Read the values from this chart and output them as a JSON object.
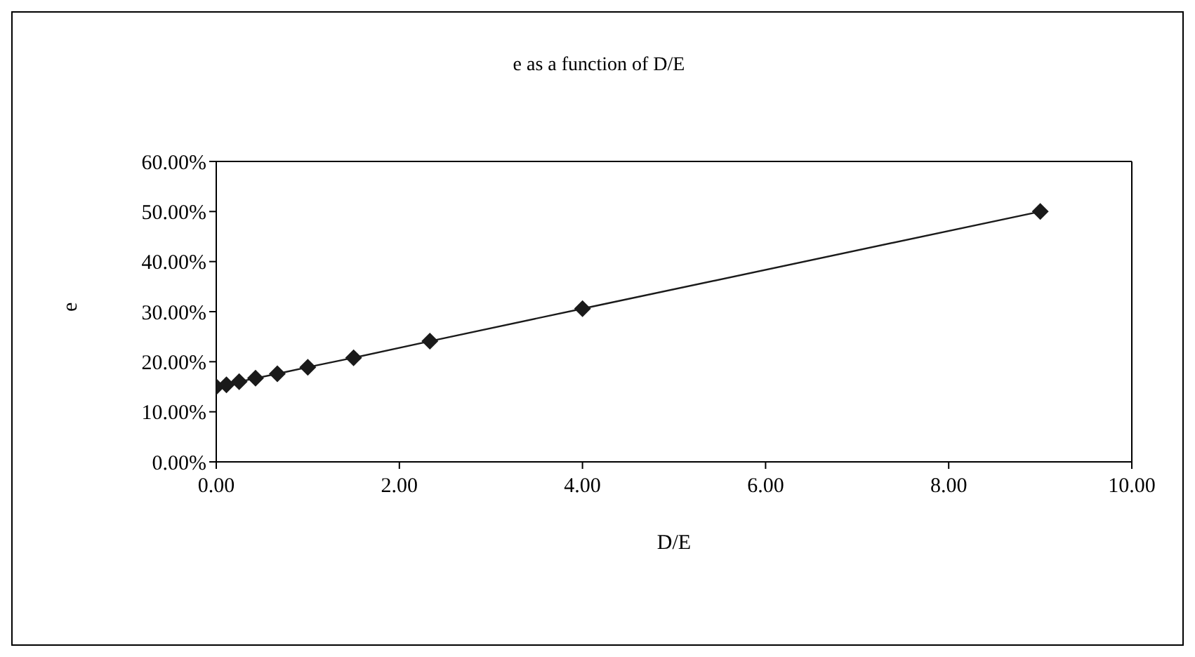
{
  "chart_data": {
    "type": "line",
    "title": "e as a function of D/E",
    "xlabel": "D/E",
    "ylabel": "e",
    "x": [
      0,
      0.111,
      0.25,
      0.429,
      0.667,
      1,
      1.5,
      2.333,
      4,
      9
    ],
    "series": [
      {
        "color": "#1a1a1a",
        "values": [
          15,
          15.4,
          16,
          16.7,
          17.6,
          18.9,
          20.8,
          24.1,
          30.6,
          50
        ]
      }
    ],
    "xlim": [
      0,
      10
    ],
    "xticks": [
      {
        "value": 0,
        "label": "0.00"
      },
      {
        "value": 2,
        "label": "2.00"
      },
      {
        "value": 4,
        "label": "4.00"
      },
      {
        "value": 6,
        "label": "6.00"
      },
      {
        "value": 8,
        "label": "8.00"
      },
      {
        "value": 10,
        "label": "10.00"
      }
    ],
    "ylim": [
      0,
      60
    ],
    "yticks": [
      {
        "value": 0,
        "label": "0.00%"
      },
      {
        "value": 10,
        "label": "10.00%"
      },
      {
        "value": 20,
        "label": "20.00%"
      },
      {
        "value": 30,
        "label": "30.00%"
      },
      {
        "value": 40,
        "label": "40.00%"
      },
      {
        "value": 50,
        "label": "50.00%"
      },
      {
        "value": 60,
        "label": "60.00%"
      }
    ],
    "marker": "diamond",
    "line_style": "solid"
  }
}
